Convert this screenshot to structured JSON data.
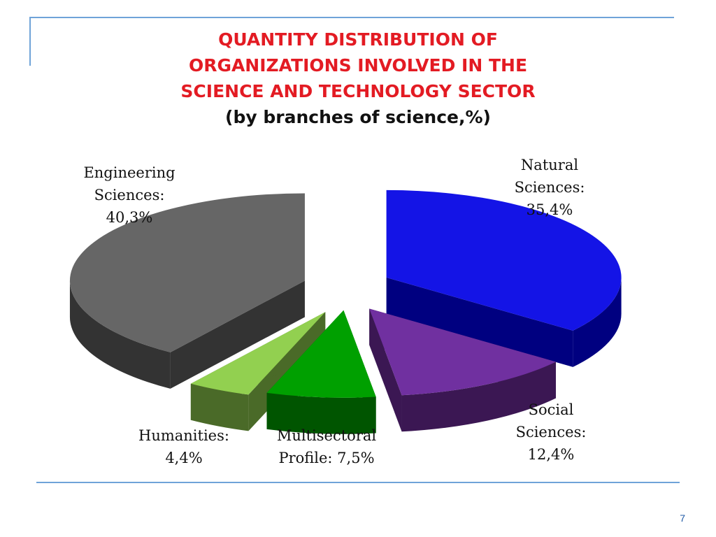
{
  "title_lines": [
    "QUANTITY DISTRIBUTION OF",
    "ORGANIZATIONS INVOLVED IN THE",
    "SCIENCE  AND TECHNOLOGY SECTOR"
  ],
  "subtitle": "(by branches of science,%)",
  "page_number": "7",
  "colors": {
    "title": "#e31b23",
    "frame": "#6fa3d8",
    "page_number": "#1f5aa6"
  },
  "chart_data": {
    "type": "pie",
    "title": "QUANTITY DISTRIBUTION OF ORGANIZATIONS INVOLVED IN THE SCIENCE  AND TECHNOLOGY SECTOR",
    "subtitle": "(by branches of science,%)",
    "exploded": true,
    "three_d": true,
    "slices": [
      {
        "name": "Natural Sciences",
        "value": 35.4,
        "label_lines": [
          "Natural",
          "Sciences:",
          "35,4%"
        ],
        "top_color": "#1414e6",
        "side_color": "#000080"
      },
      {
        "name": "Social Sciences",
        "value": 12.4,
        "label_lines": [
          "Social",
          "Sciences:",
          "12,4%"
        ],
        "top_color": "#7030a0",
        "side_color": "#3b1753"
      },
      {
        "name": "Multisectoral Profile",
        "value": 7.5,
        "label_lines": [
          "Multisectoral",
          "Profile: 7,5%"
        ],
        "top_color": "#00a000",
        "side_color": "#005500"
      },
      {
        "name": "Humanities",
        "value": 4.4,
        "label_lines": [
          "Humanities:",
          "4,4%"
        ],
        "top_color": "#92d050",
        "side_color": "#4a6a28"
      },
      {
        "name": "Engineering Sciences",
        "value": 40.3,
        "label_lines": [
          "Engineering",
          "Sciences:",
          "40,3%"
        ],
        "top_color": "#666666",
        "side_color": "#333333"
      }
    ]
  }
}
